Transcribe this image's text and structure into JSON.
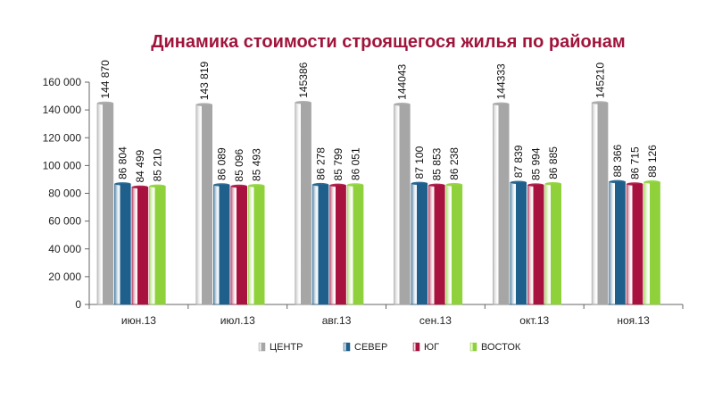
{
  "chart_data": {
    "type": "bar",
    "title": "Динамика стоимости строящегося жилья по районам",
    "categories": [
      "июн.13",
      "июл.13",
      "авг.13",
      "сен.13",
      "окт.13",
      "ноя.13"
    ],
    "series": [
      {
        "name": "ЦЕНТР",
        "color": "#a6a6a6",
        "values": [
          144870,
          143819,
          145386,
          144043,
          144333,
          145210
        ],
        "labels": [
          "144 870",
          "143 819",
          "145386",
          "144043",
          "144333",
          "145210"
        ]
      },
      {
        "name": "СЕВЕР",
        "color": "#1f5f8c",
        "values": [
          86804,
          86089,
          86278,
          87100,
          87839,
          88366
        ],
        "labels": [
          "86 804",
          "86 089",
          "86 278",
          "87 100",
          "87 839",
          "88 366"
        ]
      },
      {
        "name": "ЮГ",
        "color": "#a8123e",
        "values": [
          84499,
          85096,
          85799,
          85853,
          85994,
          86715
        ],
        "labels": [
          "84 499",
          "85 096",
          "85 799",
          "85 853",
          "85 994",
          "86 715"
        ]
      },
      {
        "name": "ВОСТОК",
        "color": "#8fd13b",
        "values": [
          85210,
          85493,
          86051,
          86238,
          86885,
          88126
        ],
        "labels": [
          "85 210",
          "85 493",
          "86 051",
          "86 238",
          "86 885",
          "88 126"
        ]
      }
    ],
    "ylim": [
      0,
      160000
    ],
    "yticks": [
      0,
      20000,
      40000,
      60000,
      80000,
      100000,
      120000,
      140000,
      160000
    ],
    "ytick_labels": [
      "0",
      "20 000",
      "40 000",
      "60 000",
      "80 000",
      "100 000",
      "120 000",
      "140 000",
      "160 000"
    ],
    "grid": false,
    "legend_position": "bottom"
  }
}
